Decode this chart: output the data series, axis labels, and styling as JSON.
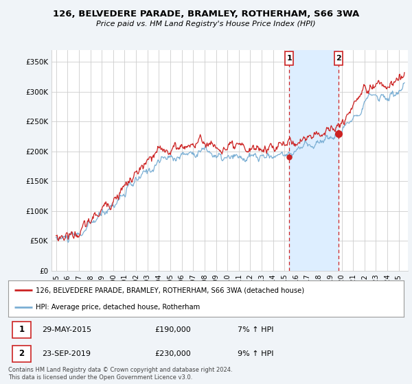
{
  "title": "126, BELVEDERE PARADE, BRAMLEY, ROTHERHAM, S66 3WA",
  "subtitle": "Price paid vs. HM Land Registry's House Price Index (HPI)",
  "ylim": [
    0,
    370000
  ],
  "sale1_date": 2015.41,
  "sale1_price": 190000,
  "sale1_label": "1",
  "sale2_date": 2019.73,
  "sale2_price": 230000,
  "sale2_label": "2",
  "legend_entry1": "126, BELVEDERE PARADE, BRAMLEY, ROTHERHAM, S66 3WA (detached house)",
  "legend_entry2": "HPI: Average price, detached house, Rotherham",
  "footer": "Contains HM Land Registry data © Crown copyright and database right 2024.\nThis data is licensed under the Open Government Licence v3.0.",
  "hpi_color": "#7bafd4",
  "price_color": "#cc2222",
  "shade_color": "#ddeeff",
  "background_color": "#f0f4f8",
  "plot_bg_color": "#ffffff",
  "grid_color": "#cccccc"
}
